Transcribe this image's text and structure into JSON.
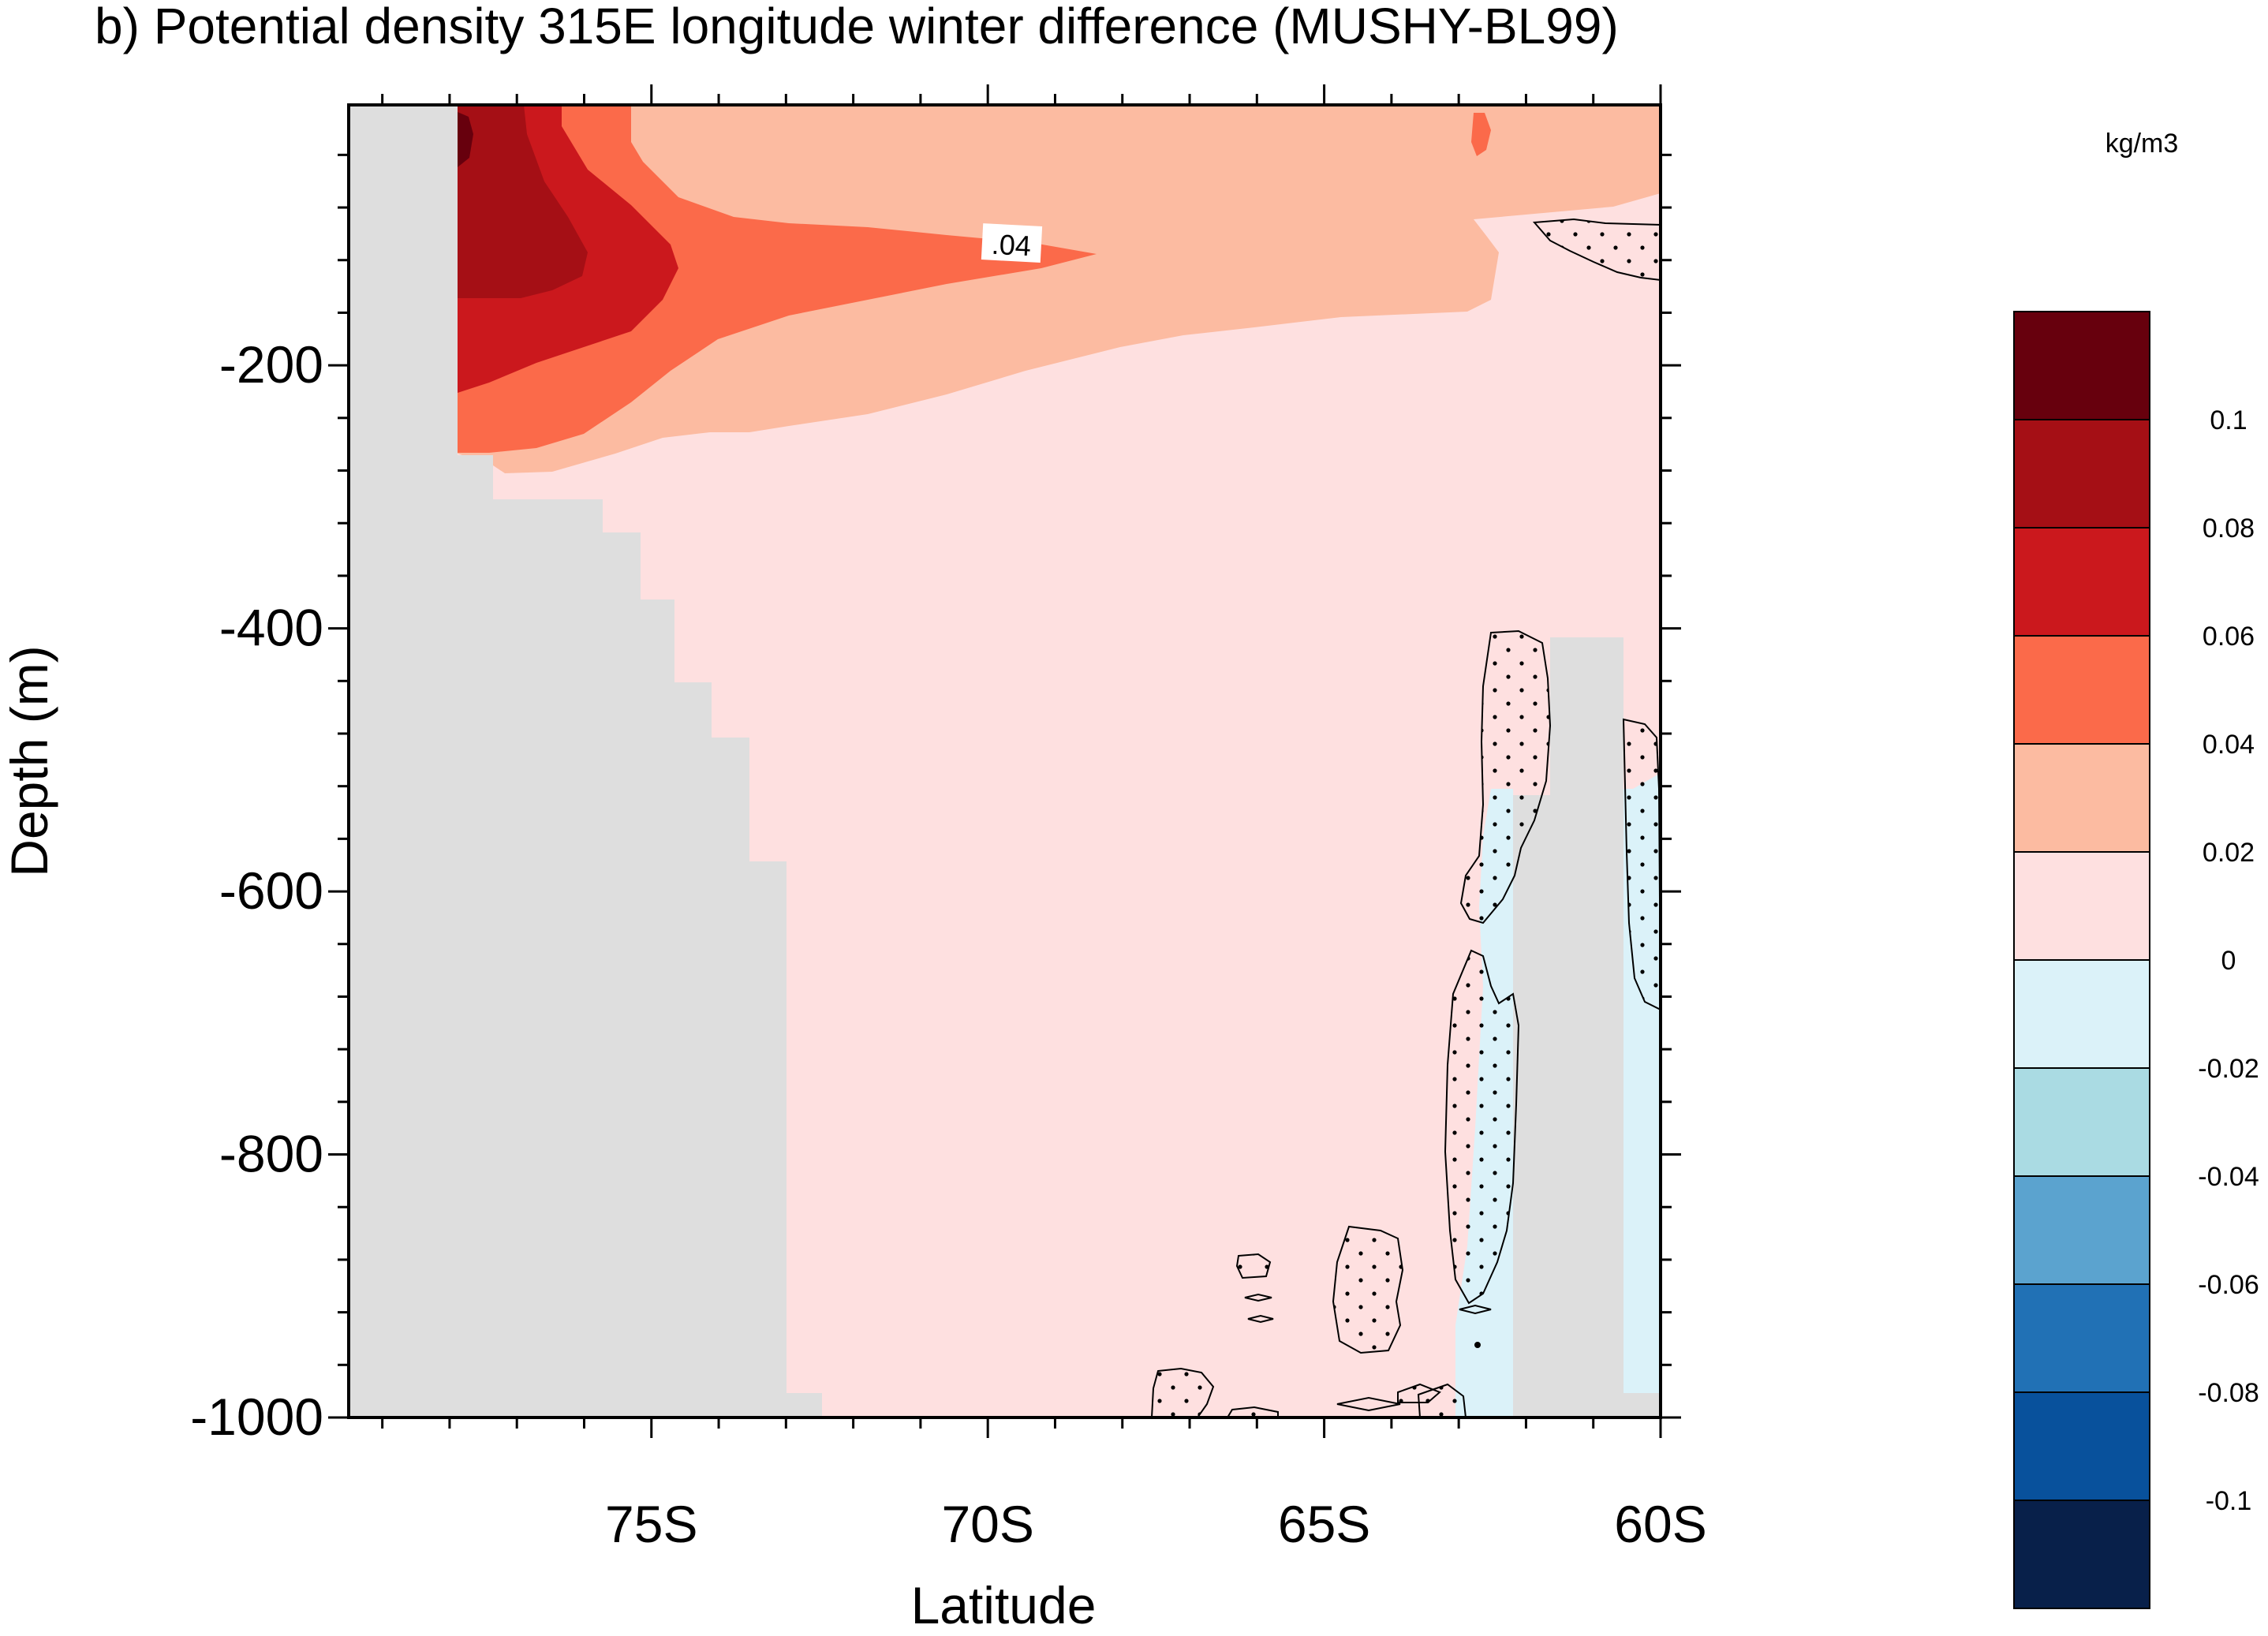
{
  "chart_data": {
    "type": "heatmap",
    "title": "b) Potential density 315E longitude winter difference (MUSHY-BL99)",
    "xlabel": "Latitude",
    "ylabel": "Depth (m)",
    "xlim": [
      -79.5,
      -60
    ],
    "ylim": [
      -1000,
      -2
    ],
    "x_ticks": [
      {
        "value": -75,
        "label": "75S"
      },
      {
        "value": -70,
        "label": "70S"
      },
      {
        "value": -65,
        "label": "65S"
      },
      {
        "value": -60,
        "label": "60S"
      }
    ],
    "y_ticks": [
      {
        "value": -200,
        "label": "-200"
      },
      {
        "value": -400,
        "label": "-400"
      },
      {
        "value": -600,
        "label": "-600"
      },
      {
        "value": -800,
        "label": "-800"
      },
      {
        "value": -1000,
        "label": "-1000"
      }
    ],
    "colorbar": {
      "unit": "kg/m3",
      "levels": [
        {
          "value": 0.1,
          "label": "0.1"
        },
        {
          "value": 0.08,
          "label": "0.08"
        },
        {
          "value": 0.06,
          "label": "0.06"
        },
        {
          "value": 0.04,
          "label": "0.04"
        },
        {
          "value": 0.02,
          "label": "0.02"
        },
        {
          "value": 0,
          "label": "0"
        },
        {
          "value": -0.02,
          "label": "-0.02"
        },
        {
          "value": -0.04,
          "label": "-0.04"
        },
        {
          "value": -0.06,
          "label": "-0.06"
        },
        {
          "value": -0.08,
          "label": "-0.08"
        },
        {
          "value": -0.1,
          "label": "-0.1"
        }
      ],
      "colors": [
        "#67000d",
        "#a50f15",
        "#cb181d",
        "#fb6a4a",
        "#fcbba1",
        "#fee0e0",
        "#dbf2f9",
        "#aadbe3",
        "#5ba3cf",
        "#2171b5",
        "#08519c",
        "#08204a"
      ]
    },
    "contour_labels": [
      {
        "text": ".04",
        "x": -70.4,
        "y": -108
      }
    ],
    "regions": [
      {
        "fill": "positive 0–0.02",
        "extent": "most of the section below ~250 m"
      },
      {
        "fill": "0.02–0.04",
        "extent": "upper ~250 m, thinning northward"
      },
      {
        "fill": "0.04–0.06",
        "extent": "tongue from 78S to ~68S at 0–280 m"
      },
      {
        "fill": "0.06–0.1",
        "extent": "near-coast core 78S–75S, 0–220 m"
      },
      {
        "fill": "negative 0 to -0.02",
        "extent": "narrow columns near 63S and 60.5S"
      }
    ],
    "mask": "bathymetry (land / sea floor) shown in light gray",
    "stippling": "dotted regions are significant"
  }
}
